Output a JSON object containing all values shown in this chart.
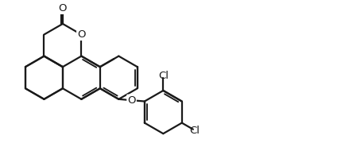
{
  "background_color": "#ffffff",
  "line_color": "#1a1a1a",
  "line_width": 1.6,
  "text_color": "#1a1a1a",
  "font_size": 9.5,
  "fig_width": 4.34,
  "fig_height": 1.85,
  "dpi": 100,
  "xlim": [
    0.2,
    8.5
  ],
  "ylim": [
    0.3,
    3.6
  ]
}
